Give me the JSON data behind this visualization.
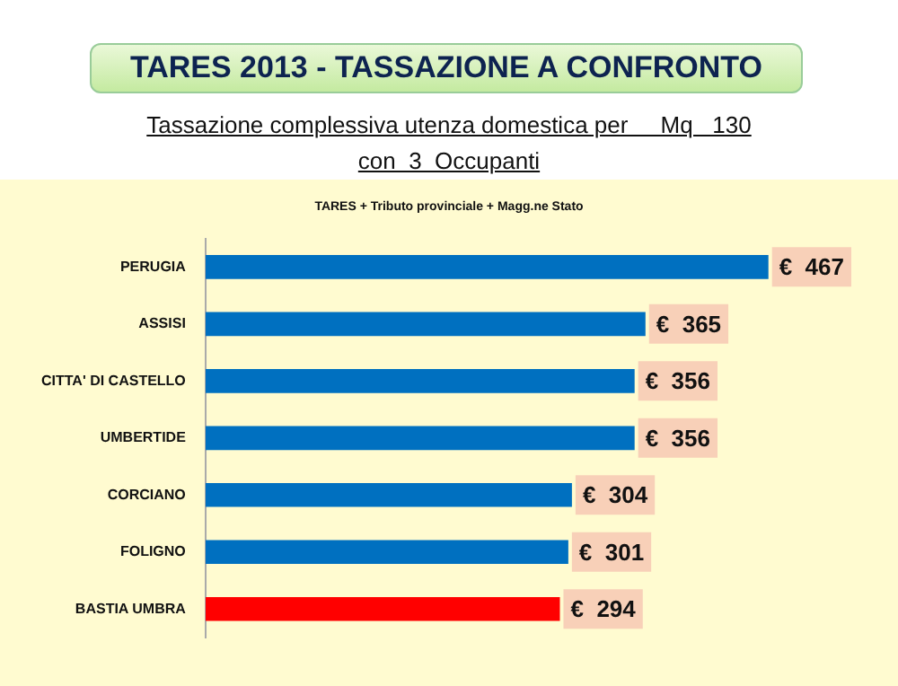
{
  "chart_data": {
    "type": "bar",
    "orientation": "horizontal",
    "title": "TARES 2013  -  TASSAZIONE  A  CONFRONTO",
    "subtitle": "Tassazione complessiva utenza domestica per     Mq   130\ncon  3  Occupanti",
    "annotations": [
      "TARES + Tributo provinciale + Magg.ne  Stato"
    ],
    "categories": [
      "PERUGIA",
      "ASSISI",
      "CITTA' DI CASTELLO",
      "UMBERTIDE",
      "CORCIANO",
      "FOLIGNO",
      "BASTIA UMBRA"
    ],
    "values": [
      467,
      365,
      356,
      356,
      304,
      301,
      294
    ],
    "colors": [
      "#0070c0",
      "#0070c0",
      "#0070c0",
      "#0070c0",
      "#0070c0",
      "#0070c0",
      "#ff0000"
    ],
    "value_labels": [
      "€  467",
      "€  365",
      "€  356",
      "€  356",
      "€  304",
      "€  301",
      "€  294"
    ],
    "legend": false
  }
}
